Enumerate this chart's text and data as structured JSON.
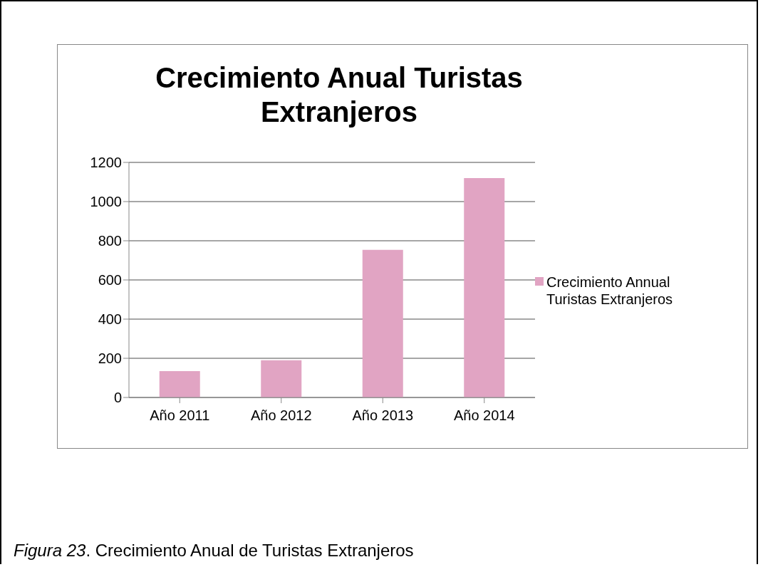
{
  "chart_data": {
    "type": "bar",
    "title": "Crecimiento Anual Turistas Extranjeros",
    "categories": [
      "Año 2011",
      "Año 2012",
      "Año 2013",
      "Año 2014"
    ],
    "series": [
      {
        "name": "Crecimiento Annual Turistas Extranjeros",
        "color": "#e1a4c3",
        "values": [
          135,
          190,
          754,
          1120
        ]
      }
    ],
    "ylim": [
      0,
      1200
    ],
    "yticks": [
      0,
      200,
      400,
      600,
      800,
      1000,
      1200
    ],
    "grid": "y",
    "legend": "right",
    "annotations": [
      "Figura 23. Crecimiento Anual de Turistas Extranjeros"
    ]
  }
}
